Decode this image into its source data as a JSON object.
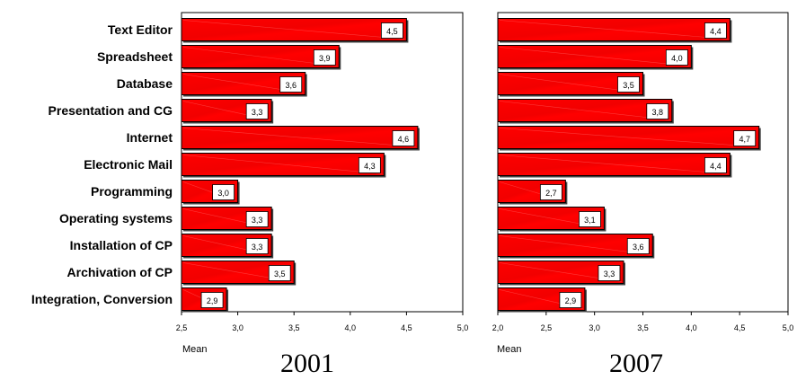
{
  "chart_data": [
    {
      "type": "bar",
      "orientation": "horizontal",
      "title": "2001",
      "xlabel": "Mean",
      "xlim": [
        2.5,
        5.0
      ],
      "x_ticks": [
        "2,5",
        "3,0",
        "3,5",
        "4,0",
        "4,5",
        "5,0"
      ],
      "categories": [
        "Text Editor",
        "Spreadsheet",
        "Database",
        "Presentation and CG",
        "Internet",
        "Electronic Mail",
        "Programming",
        "Operating systems",
        "Installation of CP",
        "Archivation of CP",
        "Integration, Conversion"
      ],
      "values": [
        4.5,
        3.9,
        3.6,
        3.3,
        4.6,
        4.3,
        3.0,
        3.3,
        3.3,
        3.5,
        2.9
      ],
      "value_labels": [
        "4,5",
        "3,9",
        "3,6",
        "3,3",
        "4,6",
        "4,3",
        "3,0",
        "3,3",
        "3,3",
        "3,5",
        "2,9"
      ],
      "bar_color": "#ff0000",
      "grid": false
    },
    {
      "type": "bar",
      "orientation": "horizontal",
      "title": "2007",
      "xlabel": "Mean",
      "xlim": [
        2.0,
        5.0
      ],
      "x_ticks": [
        "2,0",
        "2,5",
        "3,0",
        "3,5",
        "4,0",
        "4,5",
        "5,0"
      ],
      "categories": [
        "Text Editor",
        "Spreadsheet",
        "Database",
        "Presentation and CG",
        "Internet",
        "Electronic Mail",
        "Programming",
        "Operating systems",
        "Installation of CP",
        "Archivation of CP",
        "Integration, Conversion"
      ],
      "values": [
        4.4,
        4.0,
        3.5,
        3.8,
        4.7,
        4.4,
        2.7,
        3.1,
        3.6,
        3.3,
        2.9
      ],
      "value_labels": [
        "4,4",
        "4,0",
        "3,5",
        "3,8",
        "4,7",
        "4,4",
        "2,7",
        "3,1",
        "3,6",
        "3,3",
        "2,9"
      ],
      "bar_color": "#ff0000",
      "grid": false
    }
  ]
}
